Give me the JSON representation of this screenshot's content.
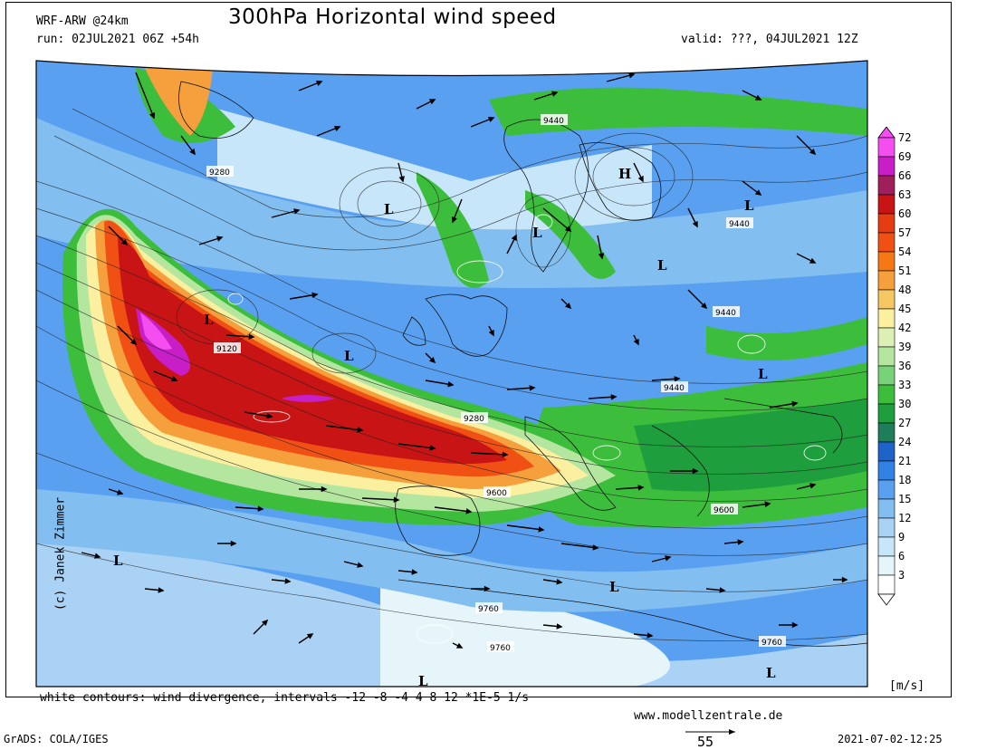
{
  "header": {
    "model": "WRF-ARW @24km",
    "run": "run: 02JUL2021 06Z +54h",
    "title": "300hPa Horizontal wind speed",
    "valid": "valid: ???, 04JUL2021 12Z"
  },
  "footer": {
    "divergence_note": "white contours: wind divergence, intervals -12 -8 -4 4 8 12 *1E-5 1/s",
    "website": "www.modellzentrale.de",
    "software": "GrADS: COLA/IGES",
    "timestamp": "2021-07-02-12:25",
    "copyright": "(c) Janek Zimmer",
    "reference_vector": "55"
  },
  "colorbar": {
    "units": "[m/s]",
    "levels": [
      "72",
      "69",
      "66",
      "63",
      "60",
      "57",
      "54",
      "51",
      "48",
      "45",
      "42",
      "39",
      "36",
      "33",
      "30",
      "27",
      "24",
      "21",
      "18",
      "15",
      "12",
      "9",
      "6",
      "3"
    ],
    "colors": [
      "#f54ef0",
      "#c81ec8",
      "#a01e5a",
      "#c81414",
      "#e63c14",
      "#f05014",
      "#f57814",
      "#f5a03c",
      "#f5c864",
      "#faf0a0",
      "#dcf0b4",
      "#b4e6a0",
      "#78d278",
      "#3cbe3c",
      "#1e9e3c",
      "#1e7e5a",
      "#1e64c8",
      "#3282e6",
      "#5aa0f0",
      "#82bef0",
      "#aad2f5",
      "#c8e6fa",
      "#e6f5fa",
      "#ffffff"
    ]
  },
  "map": {
    "contour_labels": [
      "9440",
      "9280",
      "9440",
      "9440",
      "9120",
      "9440",
      "9280",
      "9600",
      "9600",
      "9760",
      "9760",
      "9760"
    ],
    "pressure_centers": [
      "H",
      "L",
      "L",
      "L",
      "L",
      "L",
      "L",
      "L",
      "L",
      "L",
      "L",
      "L"
    ]
  }
}
